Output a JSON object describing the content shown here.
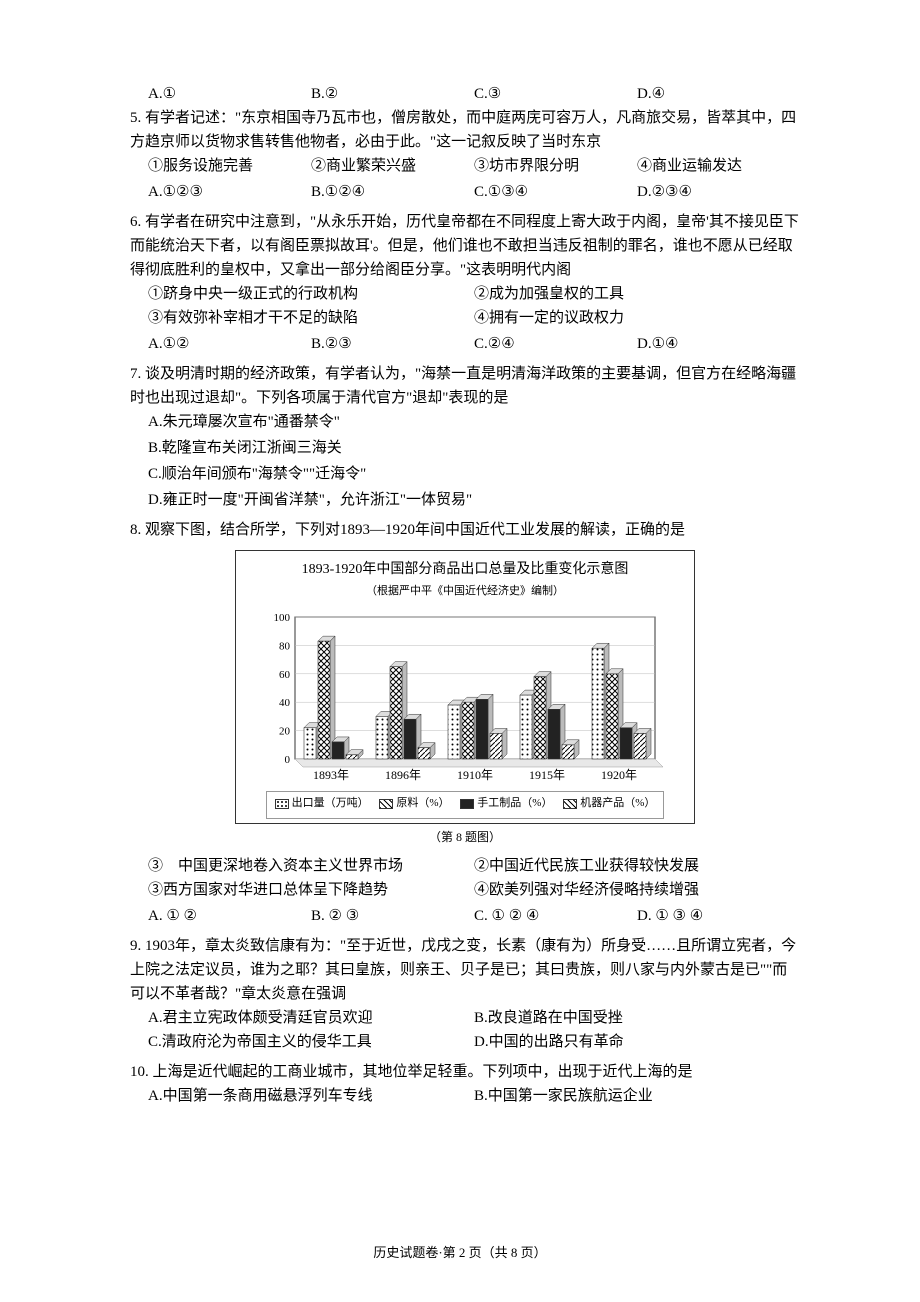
{
  "q4": {
    "options": {
      "a": "A.①",
      "b": "B.②",
      "c": "C.③",
      "d": "D.④"
    }
  },
  "q5": {
    "num": "5.",
    "text": "有学者记述：\"东京相国寺乃瓦市也，僧房散处，而中庭两庑可容万人，凡商旅交易，皆萃其中，四方趋京师以货物求售转售他物者，必由于此。\"这一记叙反映了当时东京",
    "items": {
      "i1": "①服务设施完善",
      "i2": "②商业繁荣兴盛",
      "i3": "③坊市界限分明",
      "i4": "④商业运输发达"
    },
    "options": {
      "a": "A.①②③",
      "b": "B.①②④",
      "c": "C.①③④",
      "d": "D.②③④"
    }
  },
  "q6": {
    "num": "6.",
    "text": "有学者在研究中注意到，\"从永乐开始，历代皇帝都在不同程度上寄大政于内阁，皇帝'其不接见臣下而能统治天下者，以有阁臣票拟故耳'。但是，他们谁也不敢担当违反祖制的罪名，谁也不愿从已经取得彻底胜利的皇权中，又拿出一部分给阁臣分享。\"这表明明代内阁",
    "items": {
      "i1": "①跻身中央一级正式的行政机构",
      "i2": "②成为加强皇权的工具",
      "i3": "③有效弥补宰相才干不足的缺陷",
      "i4": "④拥有一定的议政权力"
    },
    "options": {
      "a": "A.①②",
      "b": "B.②③",
      "c": "C.②④",
      "d": "D.①④"
    }
  },
  "q7": {
    "num": "7.",
    "text": "谈及明清时期的经济政策，有学者认为，\"海禁一直是明清海洋政策的主要基调，但官方在经略海疆时也出现过退却\"。下列各项属于清代官方\"退却\"表现的是",
    "options": {
      "a": "A.朱元璋屡次宣布\"通番禁令\"",
      "b": "B.乾隆宣布关闭江浙闽三海关",
      "c": "C.顺治年间颁布\"海禁令\"\"迁海令\"",
      "d": "D.雍正时一度\"开闽省洋禁\"，允许浙江\"一体贸易\""
    }
  },
  "q8": {
    "num": "8.",
    "text": "观察下图，结合所学，下列对1893—1920年间中国近代工业发展的解读，正确的是",
    "chart": {
      "type": "bar",
      "title": "1893-1920年中国部分商品出口总量及比重变化示意图",
      "subtitle": "（根据严中平《中国近代经济史》编制）",
      "categories": [
        "1893年",
        "1896年",
        "1910年",
        "1915年",
        "1920年"
      ],
      "series": [
        {
          "name": "出口量（万吨）",
          "pattern": "dots",
          "values": [
            22,
            30,
            38,
            45,
            78
          ]
        },
        {
          "name": "原料（%）",
          "pattern": "cross",
          "values": [
            83,
            65,
            40,
            58,
            60
          ]
        },
        {
          "name": "手工制品（%）",
          "pattern": "solid",
          "values": [
            12,
            28,
            42,
            35,
            22
          ]
        },
        {
          "name": "机器产品（%）",
          "pattern": "diag",
          "values": [
            3,
            8,
            18,
            10,
            18
          ]
        }
      ],
      "y_ticks": [
        0,
        20,
        40,
        60,
        80,
        100
      ],
      "ylim": [
        0,
        100
      ],
      "background_color": "#ffffff",
      "grid_color": "#bbbbbb",
      "axis_fontsize": 12,
      "title_fontsize": 14,
      "legend_fontsize": 11,
      "caption": "（第 8 题图）"
    },
    "items": {
      "i1": "③　中国更深地卷入资本主义世界市场",
      "i2": "②中国近代民族工业获得较快发展",
      "i3": "③西方国家对华进口总体呈下降趋势",
      "i4": "④欧美列强对华经济侵略持续增强"
    },
    "options": {
      "a": "A. ① ②",
      "b": "B. ② ③",
      "c": "C. ① ② ④",
      "d": "D. ① ③ ④"
    }
  },
  "q9": {
    "num": "9.",
    "text": "1903年，章太炎致信康有为：\"至于近世，戊戌之变，长素（康有为）所身受……且所谓立宪者，今上院之法定议员，谁为之耶？其曰皇族，则亲王、贝子是已；其曰贵族，则八家与内外蒙古是已\"\"而可以不革者哉？\"章太炎意在强调",
    "options": {
      "a": "A.君主立宪政体颇受清廷官员欢迎",
      "b": "B.改良道路在中国受挫",
      "c": "C.清政府沦为帝国主义的侵华工具",
      "d": "D.中国的出路只有革命"
    }
  },
  "q10": {
    "num": "10.",
    "text": "上海是近代崛起的工商业城市，其地位举足轻重。下列项中，出现于近代上海的是",
    "options": {
      "a": "A.中国第一条商用磁悬浮列车专线",
      "b": "B.中国第一家民族航运企业"
    }
  },
  "footer": "历史试题卷·第 2 页（共 8 页）"
}
